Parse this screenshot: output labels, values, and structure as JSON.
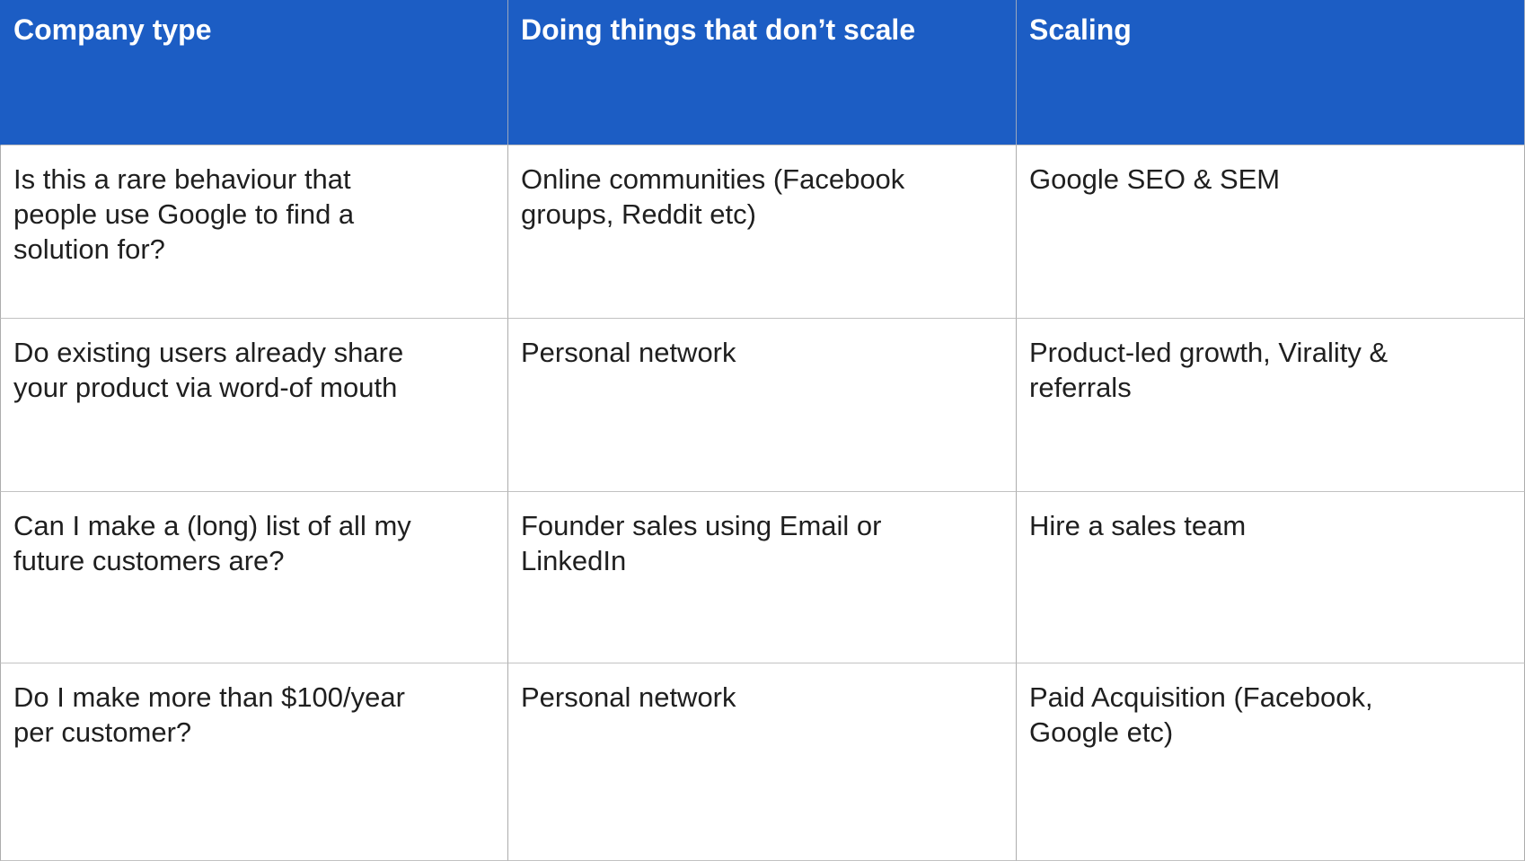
{
  "table": {
    "header_bg_color": "#1c5dc4",
    "header_text_color": "#ffffff",
    "body_text_color": "#1f1f1f",
    "border_color": "#adadad",
    "columns": [
      {
        "label": "Company type"
      },
      {
        "label": "Doing things that don’t scale"
      },
      {
        "label": "Scaling"
      }
    ],
    "rows": [
      {
        "cells": [
          "Is this a rare behaviour that people use Google to find a solution for?",
          "Online communities (Facebook groups, Reddit etc)",
          "Google SEO & SEM"
        ]
      },
      {
        "cells": [
          "Do existing users already share your product via word-of mouth",
          "Personal network",
          "Product-led growth, Virality & referrals"
        ]
      },
      {
        "cells": [
          "Can I make a (long) list of all my future customers are?",
          "Founder sales using Email or LinkedIn",
          "Hire a sales team"
        ]
      },
      {
        "cells": [
          "Do I make more than $100/year per customer?",
          "Personal network",
          "Paid Acquisition (Facebook, Google etc)"
        ]
      }
    ]
  }
}
